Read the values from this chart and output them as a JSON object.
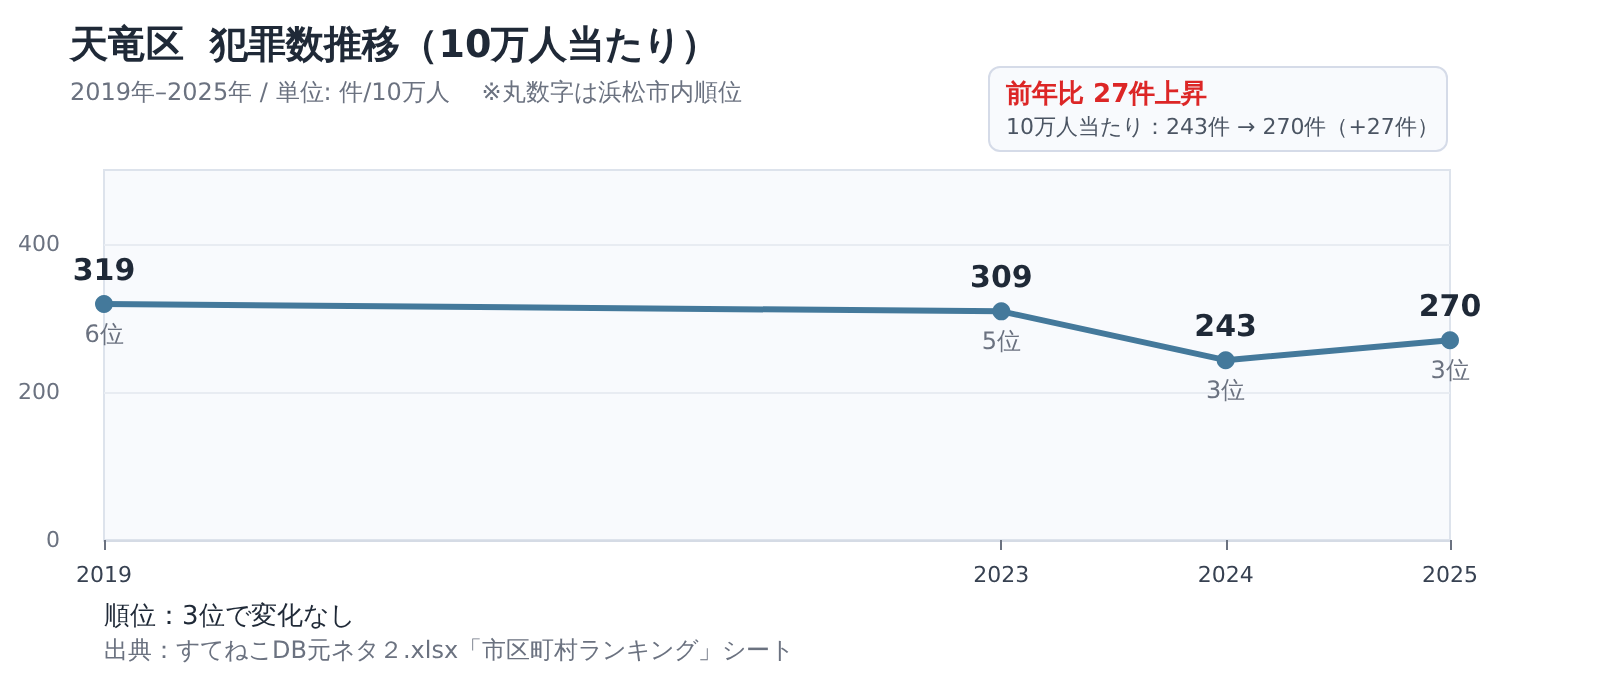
{
  "chart_data": {
    "type": "line",
    "title": "天竜区  犯罪数推移（10万人当たり）",
    "subtitle": "2019年–2025年 / 単位: 件/10万人　 ※丸数字は浜松市内順位",
    "x": [
      2019,
      2023,
      2024,
      2025
    ],
    "series": [
      {
        "color": "#44799b",
        "values": [
          319,
          309,
          243,
          270
        ]
      }
    ],
    "xlim": [
      2019,
      2025
    ],
    "xticks": [
      2019,
      2023,
      2024,
      2025
    ],
    "ylim": [
      0,
      500
    ],
    "yticks": [
      0,
      200,
      400
    ],
    "grid": "y",
    "marker": "circle",
    "line_style": "solid",
    "data_labels": true,
    "annotations": [
      "前年比  27件上昇",
      "10万人当たり：243件 → 270件（+27件）",
      "順位：3位で変化なし",
      "出典：すてねこDB元ネタ２.xlsx「市区町村ランキング」シート",
      {
        "text": "6位",
        "x": 2019,
        "y": 319
      },
      {
        "text": "5位",
        "x": 2023,
        "y": 309
      },
      {
        "text": "3位",
        "x": 2024,
        "y": 243
      },
      {
        "text": "3位",
        "x": 2025,
        "y": 270
      }
    ]
  }
}
